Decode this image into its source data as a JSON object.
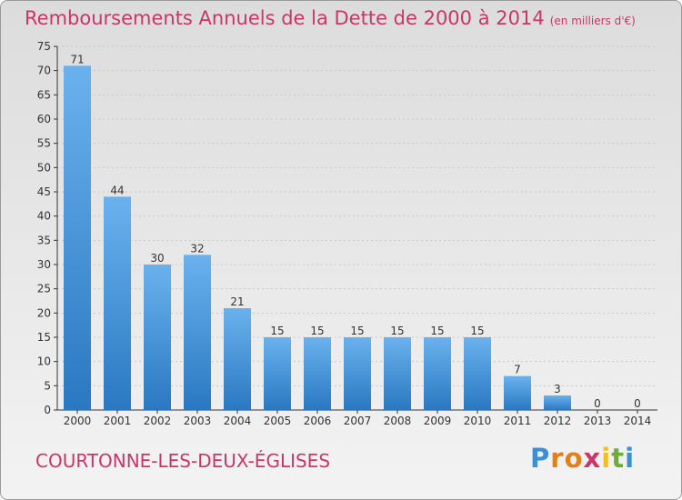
{
  "title": "Remboursements Annuels de la Dette de 2000 à 2014",
  "subtitle": "(en milliers d'€)",
  "commune": "COURTONNE-LES-DEUX-ÉGLISES",
  "logo": {
    "letters": [
      "P",
      "r",
      "o",
      "x",
      "i",
      "t",
      "i"
    ],
    "colors": [
      "#3a8fd8",
      "#e0801f",
      "#e0801f",
      "#c8366a",
      "#f0c020",
      "#6cae3a",
      "#3a8fd8"
    ]
  },
  "colors": {
    "bar": "#3d8fd6",
    "bar_light": "#6ab2ee",
    "axis": "#333333",
    "grid": "#c8c8c8",
    "accent": "#c8366a"
  },
  "chart_data": {
    "type": "bar",
    "title": "Remboursements Annuels de la Dette de 2000 à 2014",
    "subtitle": "(en milliers d'€)",
    "xlabel": "",
    "ylabel": "",
    "categories": [
      "2000",
      "2001",
      "2002",
      "2003",
      "2004",
      "2005",
      "2006",
      "2007",
      "2008",
      "2009",
      "2010",
      "2011",
      "2012",
      "2013",
      "2014"
    ],
    "values": [
      71,
      44,
      30,
      32,
      21,
      15,
      15,
      15,
      15,
      15,
      15,
      7,
      3,
      0,
      0
    ],
    "data_labels": [
      "71",
      "44",
      "30",
      "32",
      "21",
      "15",
      "15",
      "15",
      "15",
      "15",
      "15",
      "7",
      "3",
      "0",
      "0"
    ],
    "ylim": [
      0,
      75
    ],
    "yticks": [
      0,
      5,
      10,
      15,
      20,
      25,
      30,
      35,
      40,
      45,
      50,
      55,
      60,
      65,
      70,
      75
    ],
    "grid": true
  }
}
